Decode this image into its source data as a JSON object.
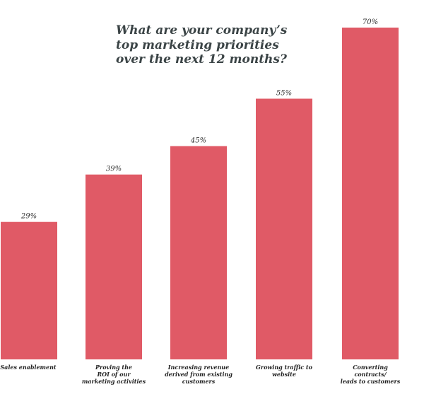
{
  "chart_data": {
    "type": "bar",
    "title": "What are your company’s\ntop marketing priorities\nover the next 12 months?",
    "categories": [
      "Sales enablement",
      "Proving the\nROI of our\nmarketing activities",
      "Increasing revenue\nderived from existing\ncustomers",
      "Growing traffic to\nwebsite",
      "Converting contracts/\nleads to customers"
    ],
    "values": [
      29,
      39,
      45,
      55,
      70
    ],
    "value_labels": [
      "29%",
      "39%",
      "45%",
      "55%",
      "70%"
    ],
    "value_suffix": "%",
    "ylim": [
      0,
      70
    ],
    "grid": false,
    "legend": "none",
    "bar_color": "#e05a66"
  }
}
